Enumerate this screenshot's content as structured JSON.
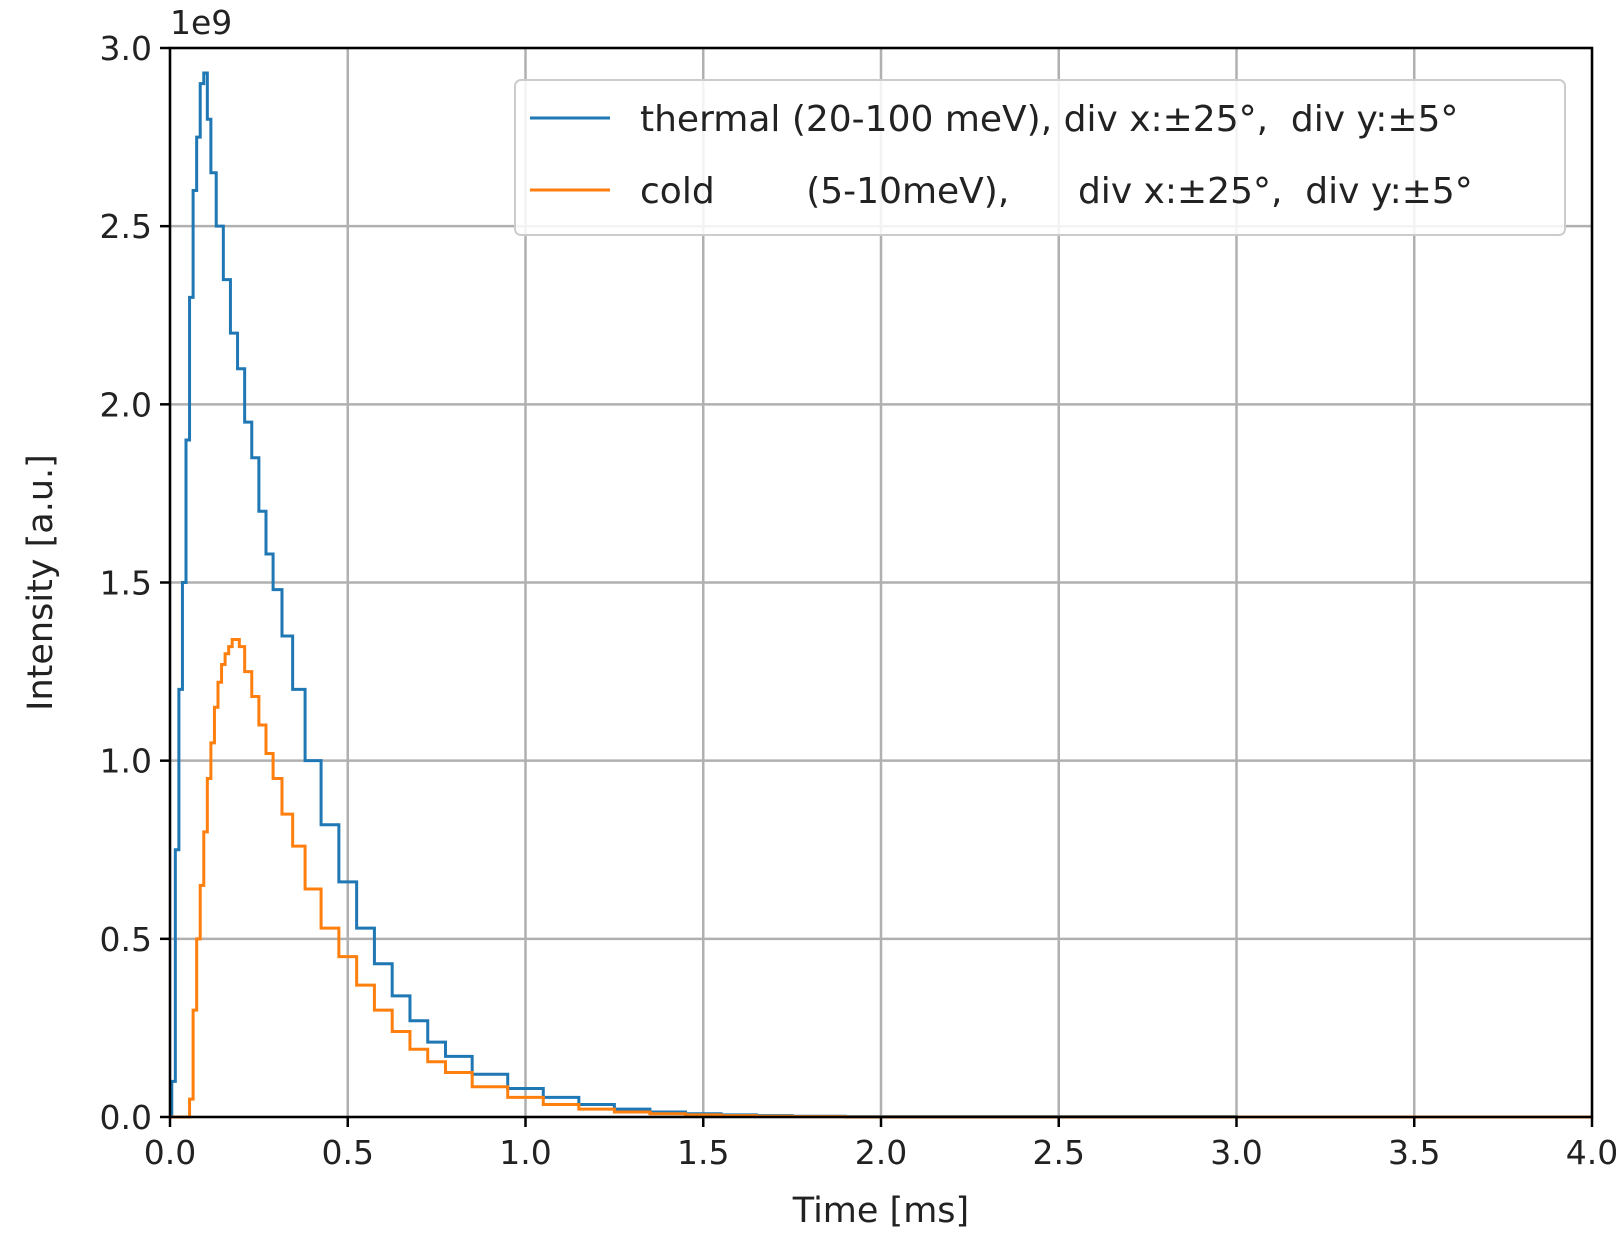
{
  "chart_data": {
    "type": "line",
    "title": "",
    "xlabel": "Time [ms]",
    "ylabel": "Intensity [a.u.]",
    "y_offset_label": "1e9",
    "xlim": [
      0.0,
      4.0
    ],
    "ylim": [
      0.0,
      3.0
    ],
    "x_scale": 1,
    "y_scale": 1000000000,
    "x_ticks": [
      0.0,
      0.5,
      1.0,
      1.5,
      2.0,
      2.5,
      3.0,
      3.5,
      4.0
    ],
    "x_tick_labels": [
      "0.0",
      "0.5",
      "1.0",
      "1.5",
      "2.0",
      "2.5",
      "3.0",
      "3.5",
      "4.0"
    ],
    "y_ticks": [
      0.0,
      0.5,
      1.0,
      1.5,
      2.0,
      2.5,
      3.0
    ],
    "y_tick_labels": [
      "0.0",
      "0.5",
      "1.0",
      "1.5",
      "2.0",
      "2.5",
      "3.0"
    ],
    "grid": true,
    "legend_position": "top-right",
    "step_style": "steps-mid",
    "series": [
      {
        "name": "thermal (20-100 meV), div x:±25°,  div y:±5°",
        "color": "#1f77b4",
        "x": [
          0.0,
          0.01,
          0.02,
          0.03,
          0.04,
          0.05,
          0.06,
          0.07,
          0.08,
          0.09,
          0.1,
          0.11,
          0.12,
          0.14,
          0.16,
          0.18,
          0.2,
          0.22,
          0.24,
          0.26,
          0.28,
          0.3,
          0.33,
          0.36,
          0.4,
          0.45,
          0.5,
          0.55,
          0.6,
          0.65,
          0.7,
          0.75,
          0.8,
          0.9,
          1.0,
          1.1,
          1.2,
          1.3,
          1.4,
          1.5,
          1.6,
          1.7,
          1.8,
          2.0,
          4.0
        ],
        "y": [
          0.0,
          0.1,
          0.75,
          1.2,
          1.5,
          1.9,
          2.3,
          2.6,
          2.75,
          2.9,
          2.93,
          2.8,
          2.65,
          2.5,
          2.35,
          2.2,
          2.1,
          1.95,
          1.85,
          1.7,
          1.58,
          1.48,
          1.35,
          1.2,
          1.0,
          0.82,
          0.66,
          0.53,
          0.43,
          0.34,
          0.27,
          0.21,
          0.17,
          0.12,
          0.08,
          0.055,
          0.035,
          0.022,
          0.014,
          0.009,
          0.006,
          0.004,
          0.002,
          0.001,
          0.0
        ]
      },
      {
        "name": "cold        (5-10meV),      div x:±25°,  div y:±5°",
        "color": "#ff7f0e",
        "x": [
          0.0,
          0.05,
          0.06,
          0.07,
          0.08,
          0.09,
          0.1,
          0.11,
          0.12,
          0.13,
          0.14,
          0.15,
          0.16,
          0.17,
          0.18,
          0.19,
          0.2,
          0.22,
          0.24,
          0.26,
          0.28,
          0.3,
          0.33,
          0.36,
          0.4,
          0.45,
          0.5,
          0.55,
          0.6,
          0.65,
          0.7,
          0.75,
          0.8,
          0.9,
          1.0,
          1.1,
          1.2,
          1.3,
          1.4,
          1.5,
          1.6,
          1.7,
          1.8,
          2.0,
          4.0
        ],
        "y": [
          0.0,
          0.0,
          0.05,
          0.3,
          0.5,
          0.65,
          0.8,
          0.95,
          1.05,
          1.15,
          1.22,
          1.27,
          1.3,
          1.32,
          1.34,
          1.34,
          1.32,
          1.25,
          1.18,
          1.1,
          1.02,
          0.95,
          0.85,
          0.76,
          0.64,
          0.53,
          0.45,
          0.37,
          0.3,
          0.24,
          0.19,
          0.155,
          0.125,
          0.085,
          0.055,
          0.035,
          0.022,
          0.014,
          0.009,
          0.006,
          0.004,
          0.002,
          0.001,
          0.0,
          0.0
        ]
      }
    ]
  }
}
